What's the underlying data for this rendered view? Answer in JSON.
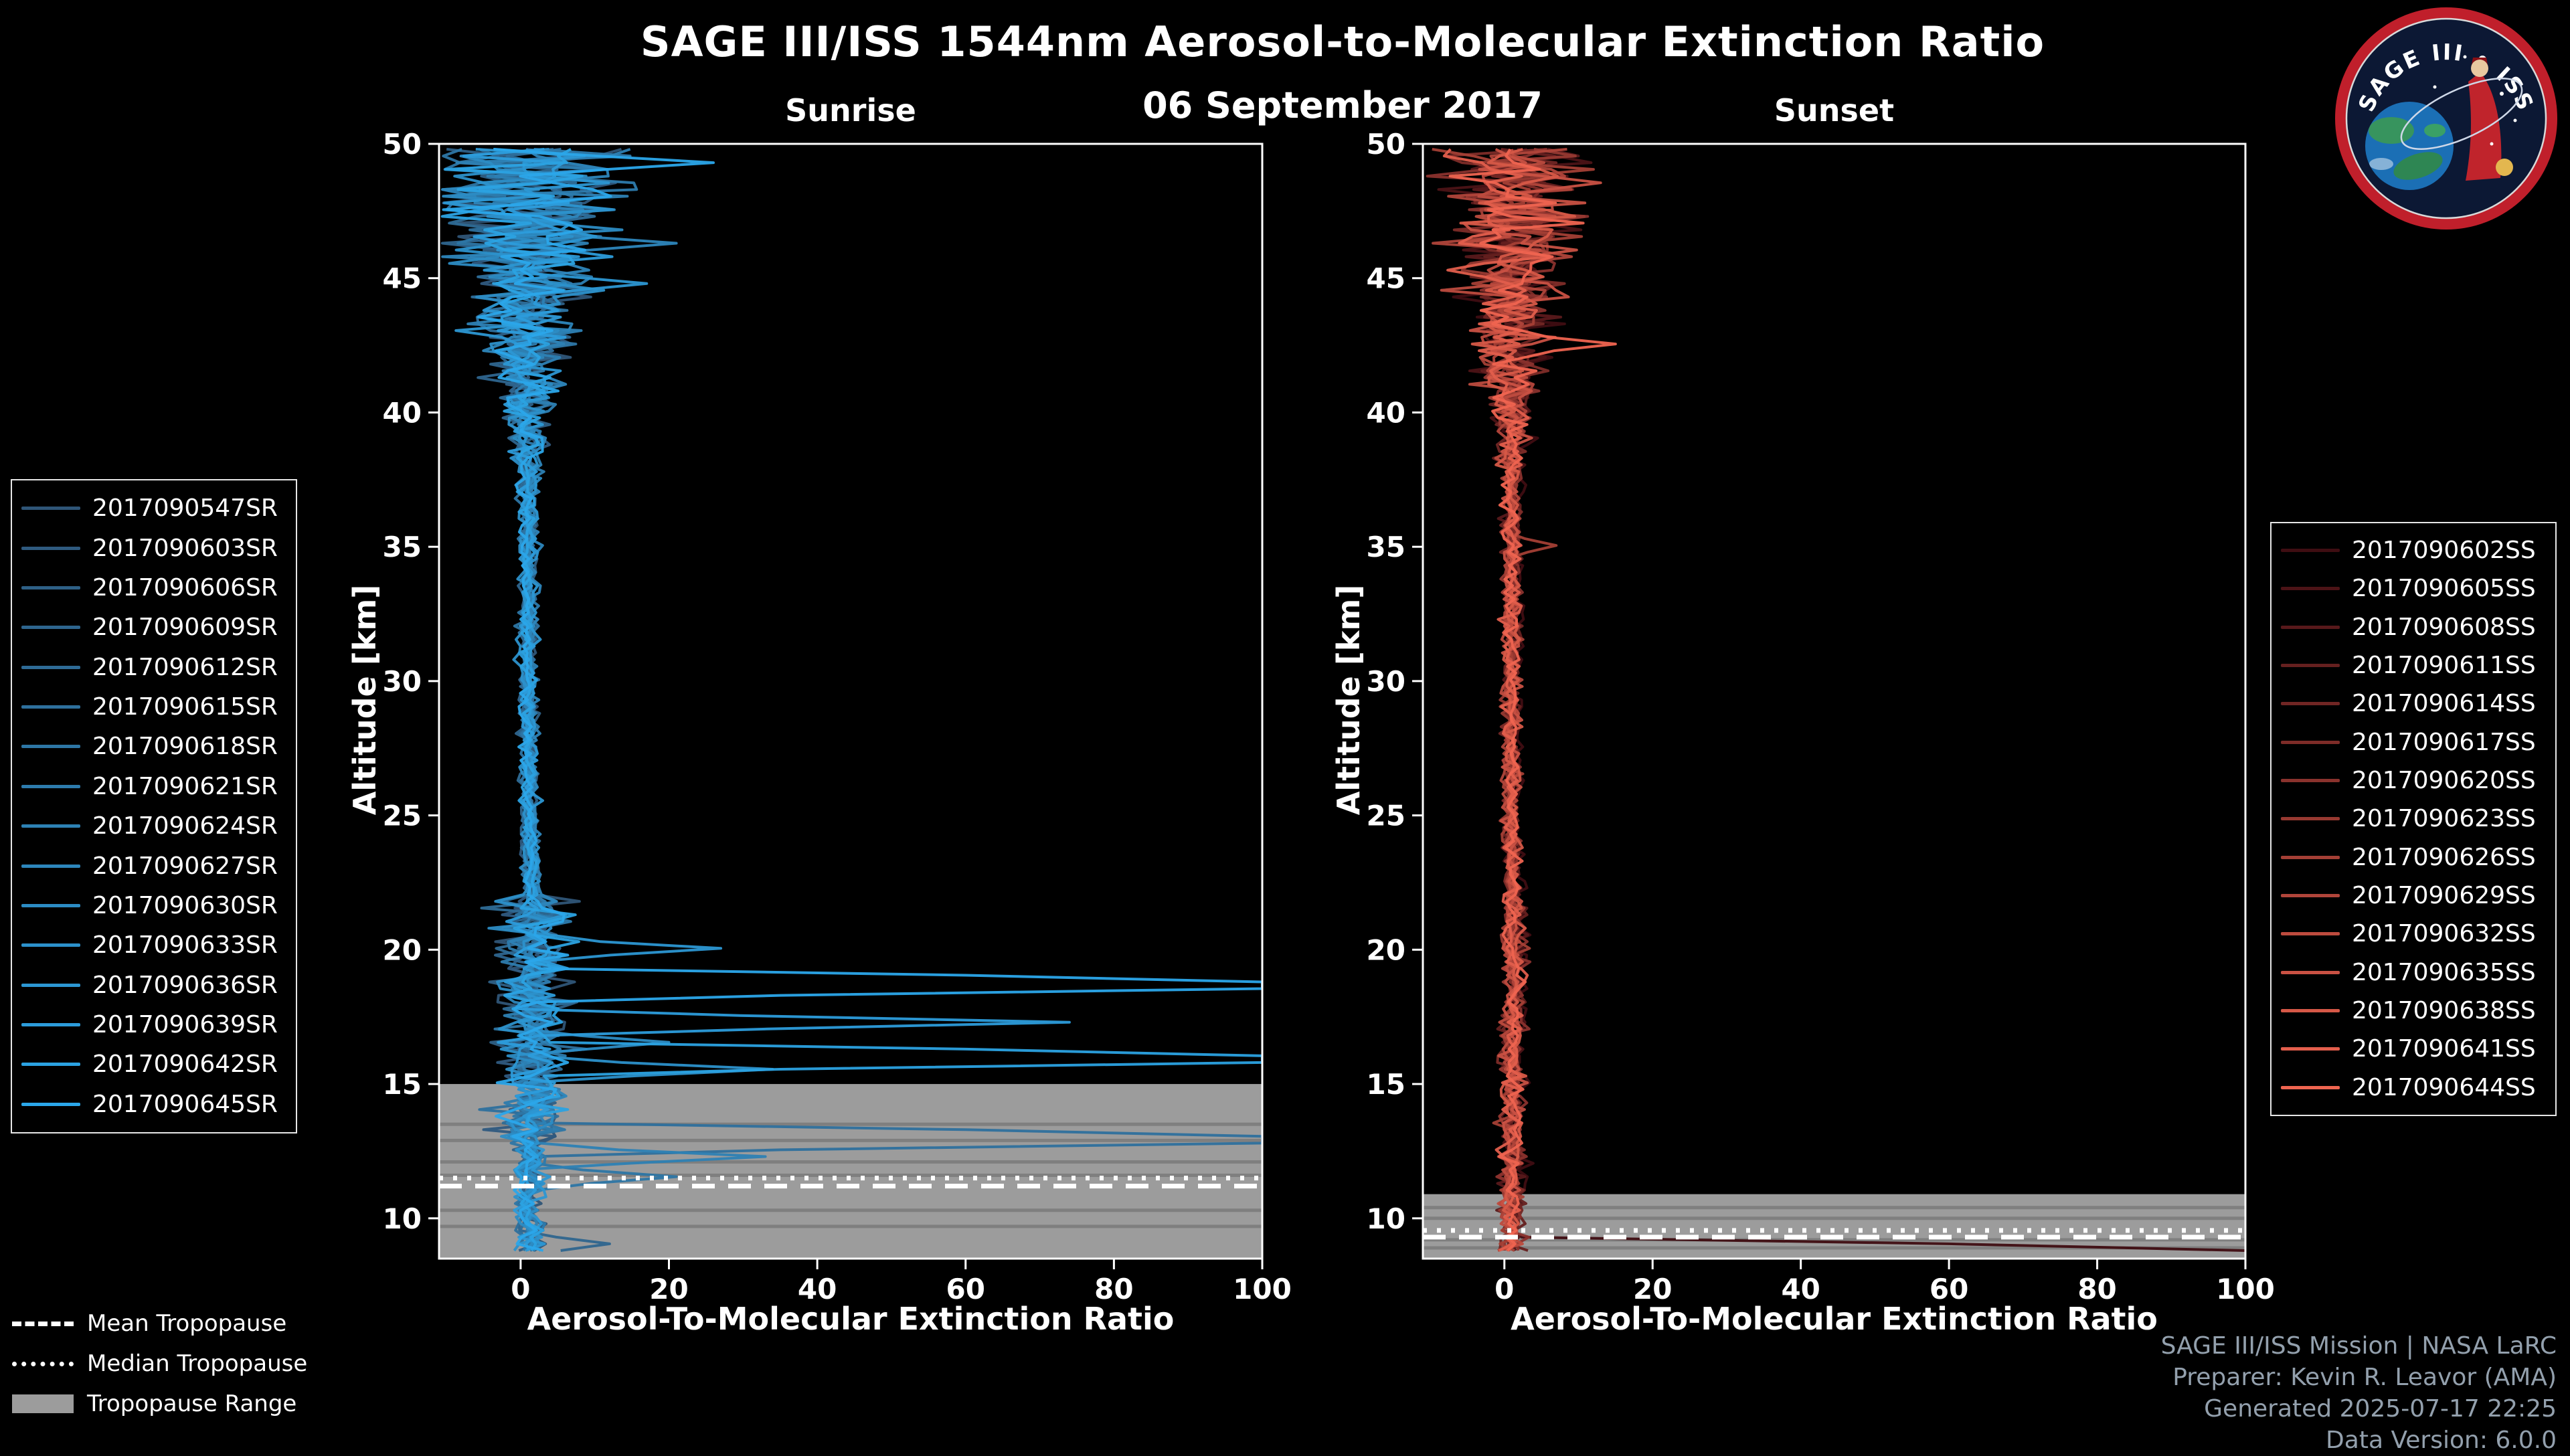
{
  "header": {
    "title": "SAGE III/ISS 1544nm Aerosol-to-Molecular Extinction Ratio",
    "date": "06 September 2017"
  },
  "logo": {
    "title": "SAGE III • ISS"
  },
  "chart_data": [
    {
      "type": "line",
      "title": "Sunrise",
      "xlabel": "Aerosol-To-Molecular Extinction Ratio",
      "ylabel": "Altitude [km]",
      "xlim": [
        -11,
        100
      ],
      "ylim": [
        8.5,
        50
      ],
      "xticks": [
        0,
        20,
        40,
        60,
        80,
        100
      ],
      "yticks": [
        10,
        15,
        20,
        25,
        30,
        35,
        40,
        45,
        50
      ],
      "series": [
        "2017090547SR",
        "2017090603SR",
        "2017090606SR",
        "2017090609SR",
        "2017090612SR",
        "2017090615SR",
        "2017090618SR",
        "2017090621SR",
        "2017090624SR",
        "2017090627SR",
        "2017090630SR",
        "2017090633SR",
        "2017090636SR",
        "2017090639SR",
        "2017090642SR",
        "2017090645SR"
      ],
      "colors": {
        "start": "#2f5577",
        "end": "#2ba7ea",
        "band": "#9c9c9c",
        "band_member": "#7f7f7f"
      },
      "seed": 20170906,
      "bump": 0.9,
      "mid_noise": 2.3,
      "noise_growth": 0.55,
      "tropopause": {
        "mean": 11.2,
        "median": 11.5,
        "range": [
          8.5,
          15.0
        ],
        "members": [
          13.5,
          12.9,
          12.1,
          11.6,
          10.3,
          9.7
        ]
      },
      "spikes": [
        {
          "series": 15,
          "alt": 18.85,
          "value": 100
        },
        {
          "series": 14,
          "alt": 16.05,
          "value": 100
        },
        {
          "series": 13,
          "alt": 17.25,
          "value": 74
        },
        {
          "series": 12,
          "alt": 19.95,
          "value": 27
        },
        {
          "series": 11,
          "alt": 15.55,
          "value": 34
        },
        {
          "series": 10,
          "alt": 16.6,
          "value": 20
        },
        {
          "series": 5,
          "alt": 13.0,
          "value": 100
        },
        {
          "series": 8,
          "alt": 12.3,
          "value": 33
        },
        {
          "series": 6,
          "alt": 11.5,
          "value": 21
        },
        {
          "series": 3,
          "alt": 9.0,
          "value": 12
        },
        {
          "series": 15,
          "alt": 49.3,
          "value": 26
        },
        {
          "series": 9,
          "alt": 46.4,
          "value": 21
        },
        {
          "series": 12,
          "alt": 44.8,
          "value": 17
        }
      ]
    },
    {
      "type": "line",
      "title": "Sunset",
      "xlabel": "Aerosol-To-Molecular Extinction Ratio",
      "ylabel": "Altitude [km]",
      "xlim": [
        -11,
        100
      ],
      "ylim": [
        8.5,
        50
      ],
      "xticks": [
        0,
        20,
        40,
        60,
        80,
        100
      ],
      "yticks": [
        10,
        15,
        20,
        25,
        30,
        35,
        40,
        45,
        50
      ],
      "series": [
        "2017090602SS",
        "2017090605SS",
        "2017090608SS",
        "2017090611SS",
        "2017090614SS",
        "2017090617SS",
        "2017090620SS",
        "2017090623SS",
        "2017090626SS",
        "2017090629SS",
        "2017090632SS",
        "2017090635SS",
        "2017090638SS",
        "2017090641SS",
        "2017090644SS"
      ],
      "colors": {
        "start": "#3f0d12",
        "end": "#ef6450",
        "band": "#9c9c9c",
        "band_member": "#7f7f7f"
      },
      "seed": 9062017,
      "bump": 0.3,
      "mid_noise": 0.8,
      "noise_growth": 0.4,
      "tropopause": {
        "mean": 9.3,
        "median": 9.55,
        "range": [
          8.5,
          10.9
        ],
        "members": [
          10.4,
          10.0,
          9.2,
          8.9
        ]
      },
      "spikes": [
        {
          "series": 0,
          "alt": 8.85,
          "value": 100
        },
        {
          "series": 14,
          "alt": 42.5,
          "value": 15
        },
        {
          "series": 11,
          "alt": 48.6,
          "value": 13
        },
        {
          "series": 8,
          "alt": 35.1,
          "value": 7
        }
      ]
    }
  ],
  "tropopause_legend": [
    {
      "label": "Mean Tropopause",
      "style": "dashed"
    },
    {
      "label": "Median Tropopause",
      "style": "dotted"
    },
    {
      "label": "Tropopause Range",
      "style": "band"
    }
  ],
  "credits": [
    "SAGE III/ISS Mission | NASA LaRC",
    "Preparer: Kevin R. Leavor (AMA)",
    "Generated 2025-07-17 22:25",
    "Data Version: 6.0.0"
  ]
}
